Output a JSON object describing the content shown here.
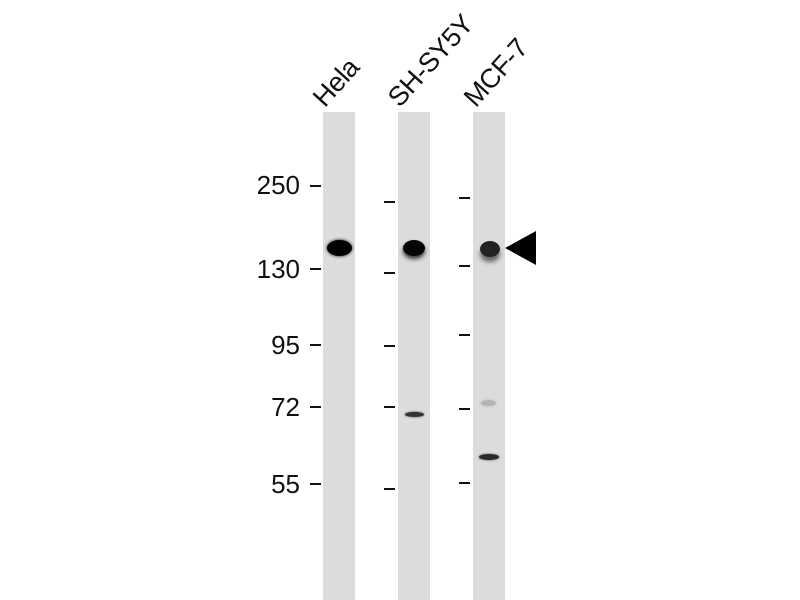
{
  "lanes": [
    {
      "label": "Hela"
    },
    {
      "label": "SH-SY5Y"
    },
    {
      "label": "MCF-7"
    }
  ],
  "markers": [
    "250",
    "130",
    "95",
    "72",
    "55"
  ],
  "arrow_icon": "left-pointing-triangle",
  "colors": {
    "lane": "#dcdcdc",
    "band": "#000000"
  }
}
